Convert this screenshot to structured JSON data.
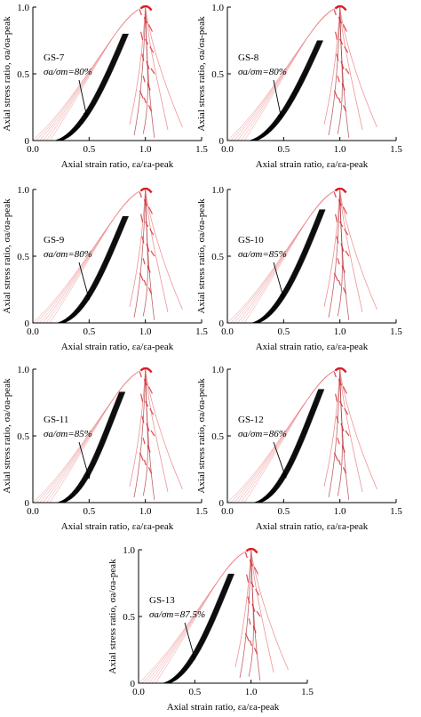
{
  "chart_data": [
    {
      "type": "line",
      "specimen": "GS-7",
      "ratio_label": "σa/σm=80%",
      "cyc_start": 0.2,
      "cyc_end": 0.85,
      "upper_stress": 0.8,
      "xlim": [
        0.0,
        1.5
      ],
      "ylim": [
        0.0,
        1.0
      ]
    },
    {
      "type": "line",
      "specimen": "GS-8",
      "ratio_label": "σa/σm=80%",
      "cyc_start": 0.2,
      "cyc_end": 0.85,
      "upper_stress": 0.75,
      "xlim": [
        0.0,
        1.5
      ],
      "ylim": [
        0.0,
        1.0
      ]
    },
    {
      "type": "line",
      "specimen": "GS-9",
      "ratio_label": "σa/σm=80%",
      "cyc_start": 0.22,
      "cyc_end": 0.85,
      "upper_stress": 0.8,
      "xlim": [
        0.0,
        1.5
      ],
      "ylim": [
        0.0,
        1.0
      ]
    },
    {
      "type": "line",
      "specimen": "GS-10",
      "ratio_label": "σa/σm=85%",
      "cyc_start": 0.22,
      "cyc_end": 0.87,
      "upper_stress": 0.85,
      "xlim": [
        0.0,
        1.5
      ],
      "ylim": [
        0.0,
        1.0
      ]
    },
    {
      "type": "line",
      "specimen": "GS-11",
      "ratio_label": "σa/σm=85%",
      "cyc_start": 0.22,
      "cyc_end": 0.82,
      "upper_stress": 0.83,
      "xlim": [
        0.0,
        1.5
      ],
      "ylim": [
        0.0,
        1.0
      ]
    },
    {
      "type": "line",
      "specimen": "GS-12",
      "ratio_label": "σa/σm=86%",
      "cyc_start": 0.24,
      "cyc_end": 0.86,
      "upper_stress": 0.85,
      "xlim": [
        0.0,
        1.5
      ],
      "ylim": [
        0.0,
        1.0
      ]
    },
    {
      "type": "line",
      "specimen": "GS-13",
      "ratio_label": "σa/σm=87.5%",
      "cyc_start": 0.22,
      "cyc_end": 0.85,
      "upper_stress": 0.82,
      "xlim": [
        0.0,
        1.5
      ],
      "ylim": [
        0.0,
        1.0
      ]
    }
  ],
  "axis": {
    "xlabel": "Axial strain ratio, εa/εa-peak",
    "ylabel": "Axial stress ratio, σa/σa-peak",
    "xticks": [
      "0.0",
      "0.5",
      "1.0",
      "1.5"
    ],
    "yticks": [
      "0",
      "0.5",
      "1.0"
    ]
  },
  "colors": {
    "cyclic": "#000000",
    "envelope": "#e8787c",
    "peak": "#d81c24"
  }
}
